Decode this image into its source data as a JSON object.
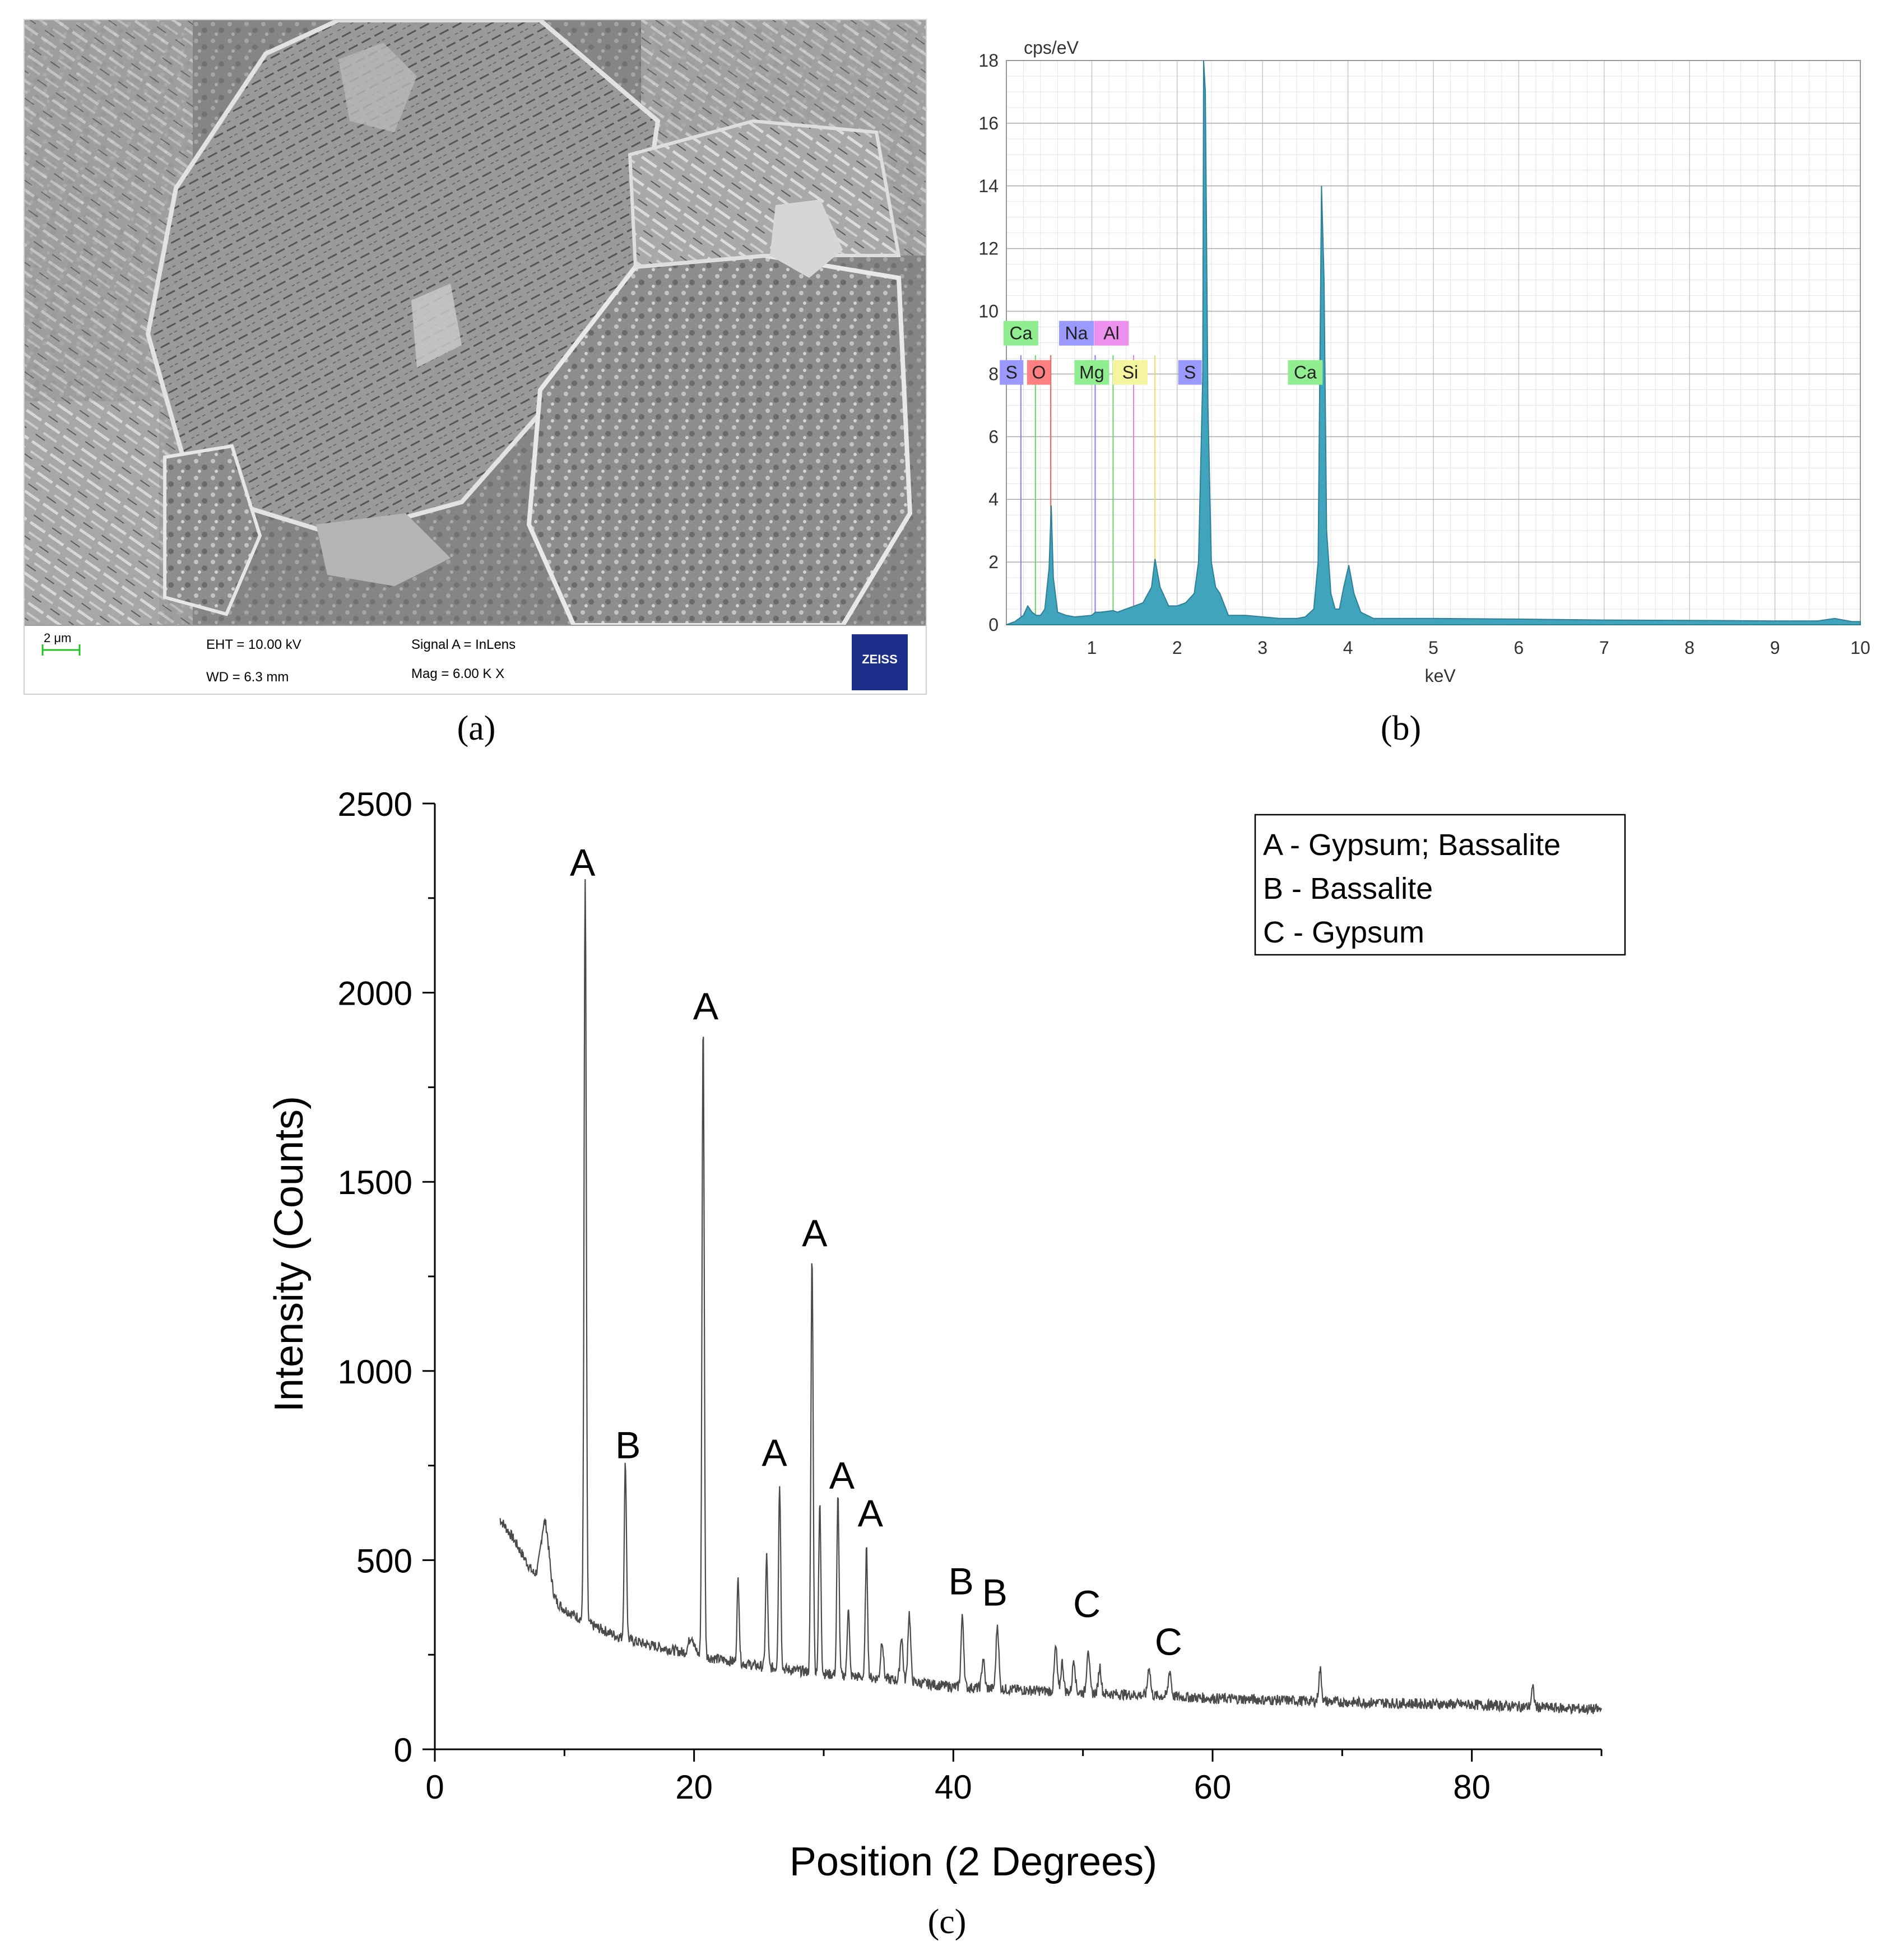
{
  "panels": {
    "a": {
      "label": "(a)",
      "scale_bar": "2 μm",
      "eht": "EHT = 10.00 kV",
      "wd": "WD =  6.3 mm",
      "signal": "Signal A = InLens",
      "mag": "Mag =     6.00 K X",
      "logo": "ZEISS"
    },
    "b": {
      "label": "(b)"
    },
    "c": {
      "label": "(c)"
    }
  },
  "colors": {
    "spectrum_fill": "#3fa4bc",
    "spectrum_line": "#2f7f97",
    "xrd_line": "#4a4a4a",
    "sem_background": "#7c7c7c",
    "sem_databar": "#ffffff",
    "zeiss_blue": "#1d2e8a"
  },
  "chart_data": [
    {
      "type": "area",
      "ylabel": "cps/eV",
      "xlabel": "keV",
      "xlim": [
        0,
        10
      ],
      "ylim": [
        0,
        18
      ],
      "xticks": [
        1,
        2,
        3,
        4,
        5,
        6,
        7,
        8,
        9,
        10
      ],
      "yticks": [
        0,
        2,
        4,
        6,
        8,
        10,
        12,
        14,
        16,
        18
      ],
      "grid": true,
      "spectrum": {
        "x": [
          0.0,
          0.1,
          0.15,
          0.2,
          0.25,
          0.3,
          0.35,
          0.4,
          0.45,
          0.5,
          0.525,
          0.55,
          0.6,
          0.7,
          0.8,
          1.0,
          1.04,
          1.1,
          1.25,
          1.3,
          1.4,
          1.5,
          1.6,
          1.7,
          1.74,
          1.8,
          1.9,
          2.0,
          2.1,
          2.2,
          2.25,
          2.3,
          2.31,
          2.33,
          2.36,
          2.4,
          2.45,
          2.5,
          2.6,
          2.8,
          3.0,
          3.2,
          3.4,
          3.5,
          3.6,
          3.65,
          3.69,
          3.72,
          3.75,
          3.8,
          3.85,
          3.9,
          3.95,
          4.01,
          4.07,
          4.15,
          4.3,
          5.0,
          6.0,
          7.0,
          8.0,
          9.0,
          9.5,
          9.7,
          9.8,
          9.9,
          10.0
        ],
        "y": [
          0.0,
          0.1,
          0.2,
          0.3,
          0.6,
          0.4,
          0.3,
          0.3,
          0.5,
          1.8,
          3.8,
          1.5,
          0.4,
          0.3,
          0.25,
          0.3,
          0.4,
          0.4,
          0.45,
          0.4,
          0.5,
          0.6,
          0.7,
          1.2,
          2.1,
          1.2,
          0.6,
          0.6,
          0.7,
          1.0,
          2.0,
          8.0,
          18.0,
          17.0,
          7.0,
          2.0,
          1.2,
          1.0,
          0.3,
          0.3,
          0.25,
          0.2,
          0.2,
          0.25,
          0.5,
          2.0,
          14.0,
          11.0,
          3.0,
          1.0,
          0.5,
          0.5,
          1.2,
          1.9,
          1.0,
          0.4,
          0.2,
          0.2,
          0.18,
          0.15,
          0.14,
          0.12,
          0.12,
          0.2,
          0.15,
          0.1,
          0.1
        ]
      },
      "element_lines": [
        {
          "element": "Ca",
          "kev": 0.34,
          "color": "#6ad46a"
        },
        {
          "element": "S",
          "kev": 0.17,
          "color": "#8080ff"
        },
        {
          "element": "O",
          "kev": 0.52,
          "color": "#e06060"
        },
        {
          "element": "Na",
          "kev": 1.04,
          "color": "#8080ff"
        },
        {
          "element": "Mg",
          "kev": 1.25,
          "color": "#6ad46a"
        },
        {
          "element": "Al",
          "kev": 1.49,
          "color": "#e080e0"
        },
        {
          "element": "Si",
          "kev": 1.74,
          "color": "#e0e060"
        },
        {
          "element": "S",
          "kev": 2.31,
          "color": "#8080ff"
        },
        {
          "element": "Ca",
          "kev": 3.69,
          "color": "#6ad46a"
        }
      ],
      "element_labels": [
        {
          "text": "Ca",
          "kev": 0.17,
          "row": "top",
          "bg": "#90ee90"
        },
        {
          "text": "S",
          "kev": 0.06,
          "row": "bottom",
          "bg": "#9999ff"
        },
        {
          "text": "O",
          "kev": 0.38,
          "row": "bottom",
          "bg": "#ff8080"
        },
        {
          "text": "Na",
          "kev": 0.82,
          "row": "top",
          "bg": "#9999ff"
        },
        {
          "text": "Al",
          "kev": 1.23,
          "row": "top",
          "bg": "#ee90ee"
        },
        {
          "text": "Mg",
          "kev": 1.0,
          "row": "bottom",
          "bg": "#90ee90"
        },
        {
          "text": "Si",
          "kev": 1.45,
          "row": "bottom",
          "bg": "#f5f5a0"
        },
        {
          "text": "S",
          "kev": 2.15,
          "row": "bottom",
          "bg": "#9999ff"
        },
        {
          "text": "Ca",
          "kev": 3.5,
          "row": "bottom",
          "bg": "#90ee90"
        }
      ]
    },
    {
      "type": "line",
      "xlabel": "Position (2 Degrees)",
      "ylabel": "Intensity (Counts)",
      "xlim": [
        0,
        90
      ],
      "ylim": [
        0,
        2500
      ],
      "xticks": [
        0,
        20,
        40,
        60,
        80
      ],
      "yticks": [
        0,
        500,
        1000,
        1500,
        2000,
        2500
      ],
      "grid": false,
      "legend": {
        "position": "top-right",
        "entries": [
          "A - Gypsum; Bassalite",
          "B - Bassalite",
          "C - Gypsum"
        ]
      },
      "background": {
        "x": [
          5,
          6,
          7,
          8,
          9,
          10,
          12,
          14,
          16,
          18,
          20,
          25,
          30,
          35,
          40,
          50,
          60,
          70,
          80,
          90
        ],
        "y": [
          610,
          560,
          500,
          440,
          400,
          370,
          330,
          300,
          280,
          265,
          250,
          220,
          200,
          185,
          165,
          150,
          135,
          125,
          118,
          105
        ]
      },
      "peaks": [
        {
          "x": 8.5,
          "y": 600,
          "w": 0.45
        },
        {
          "x": 11.6,
          "y": 2300,
          "w": 0.12
        },
        {
          "x": 14.7,
          "y": 760,
          "w": 0.12
        },
        {
          "x": 19.8,
          "y": 300,
          "w": 0.3
        },
        {
          "x": 20.7,
          "y": 1930,
          "w": 0.12
        },
        {
          "x": 23.4,
          "y": 450,
          "w": 0.12
        },
        {
          "x": 25.6,
          "y": 510,
          "w": 0.12
        },
        {
          "x": 26.6,
          "y": 700,
          "w": 0.12
        },
        {
          "x": 29.1,
          "y": 1310,
          "w": 0.12
        },
        {
          "x": 29.7,
          "y": 650,
          "w": 0.12
        },
        {
          "x": 31.1,
          "y": 670,
          "w": 0.12
        },
        {
          "x": 31.9,
          "y": 380,
          "w": 0.12
        },
        {
          "x": 33.3,
          "y": 530,
          "w": 0.12
        },
        {
          "x": 34.5,
          "y": 290,
          "w": 0.15
        },
        {
          "x": 36.0,
          "y": 300,
          "w": 0.15
        },
        {
          "x": 36.6,
          "y": 360,
          "w": 0.15
        },
        {
          "x": 40.7,
          "y": 350,
          "w": 0.15
        },
        {
          "x": 42.3,
          "y": 240,
          "w": 0.15
        },
        {
          "x": 43.4,
          "y": 330,
          "w": 0.15
        },
        {
          "x": 47.9,
          "y": 270,
          "w": 0.15
        },
        {
          "x": 48.4,
          "y": 230,
          "w": 0.15
        },
        {
          "x": 49.3,
          "y": 240,
          "w": 0.15
        },
        {
          "x": 50.4,
          "y": 270,
          "w": 0.15
        },
        {
          "x": 51.3,
          "y": 220,
          "w": 0.15
        },
        {
          "x": 55.1,
          "y": 220,
          "w": 0.15
        },
        {
          "x": 56.7,
          "y": 210,
          "w": 0.15
        },
        {
          "x": 68.3,
          "y": 210,
          "w": 0.15
        },
        {
          "x": 84.7,
          "y": 160,
          "w": 0.15
        }
      ],
      "annotations": [
        {
          "text": "A",
          "x": 11.4,
          "y": 2280
        },
        {
          "text": "B",
          "x": 14.9,
          "y": 740
        },
        {
          "text": "A",
          "x": 20.9,
          "y": 1900
        },
        {
          "text": "A",
          "x": 26.2,
          "y": 720
        },
        {
          "text": "A",
          "x": 29.3,
          "y": 1300
        },
        {
          "text": "A",
          "x": 31.4,
          "y": 660
        },
        {
          "text": "A",
          "x": 33.6,
          "y": 560
        },
        {
          "text": "B",
          "x": 40.6,
          "y": 380
        },
        {
          "text": "B",
          "x": 43.2,
          "y": 350
        },
        {
          "text": "C",
          "x": 50.3,
          "y": 320
        },
        {
          "text": "C",
          "x": 56.6,
          "y": 220
        }
      ]
    }
  ]
}
